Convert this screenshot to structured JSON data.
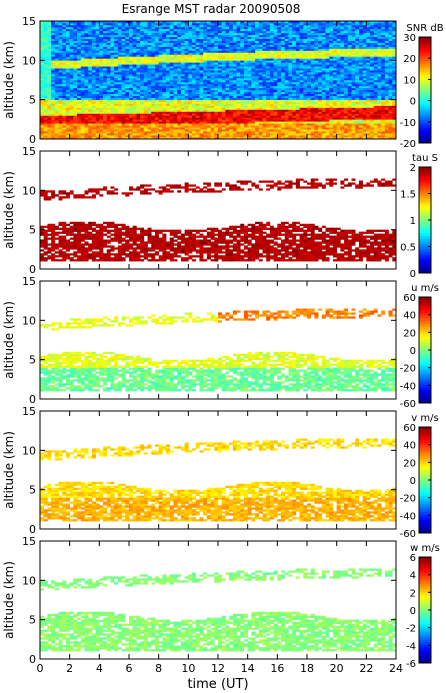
{
  "chart_data": {
    "type": "heatmap",
    "title": "Esrange MST radar 20090508",
    "xlabel": "time (UT)",
    "xlim": [
      0,
      24
    ],
    "xticks": [
      0,
      2,
      4,
      6,
      8,
      10,
      12,
      14,
      16,
      18,
      20,
      22,
      24
    ],
    "grid": false,
    "panels": [
      {
        "id": "snr",
        "ylabel": "altitude (km)",
        "ylim": [
          0,
          15
        ],
        "yticks": [
          0,
          5,
          10,
          15
        ],
        "colorbar_label": "SNR dB",
        "clim": [
          -20,
          30
        ],
        "cticks": [
          -20,
          -10,
          0,
          10,
          20,
          30
        ]
      },
      {
        "id": "tau",
        "ylabel": "altitude (km)",
        "ylim": [
          0,
          15
        ],
        "yticks": [
          0,
          5,
          10,
          15
        ],
        "colorbar_label": "tau S",
        "clim": [
          0,
          2
        ],
        "cticks": [
          0,
          0.5,
          1,
          1.5,
          2
        ]
      },
      {
        "id": "u",
        "ylabel": "altitude (km)",
        "ylim": [
          0,
          15
        ],
        "yticks": [
          0,
          5,
          10,
          15
        ],
        "colorbar_label": "u m/s",
        "clim": [
          -60,
          60
        ],
        "cticks": [
          -60,
          -40,
          -20,
          0,
          20,
          40,
          60
        ]
      },
      {
        "id": "v",
        "ylabel": "altitude (km)",
        "ylim": [
          0,
          15
        ],
        "yticks": [
          0,
          5,
          10,
          15
        ],
        "colorbar_label": "v m/s",
        "clim": [
          -60,
          60
        ],
        "cticks": [
          -60,
          -40,
          -20,
          0,
          20,
          40,
          60
        ]
      },
      {
        "id": "w",
        "ylabel": "altitude (km)",
        "ylim": [
          0,
          15
        ],
        "yticks": [
          0,
          5,
          10,
          15
        ],
        "colorbar_label": "w m/s",
        "clim": [
          -6,
          6
        ],
        "cticks": [
          -6,
          -4,
          -2,
          0,
          2,
          4,
          6
        ]
      }
    ]
  }
}
